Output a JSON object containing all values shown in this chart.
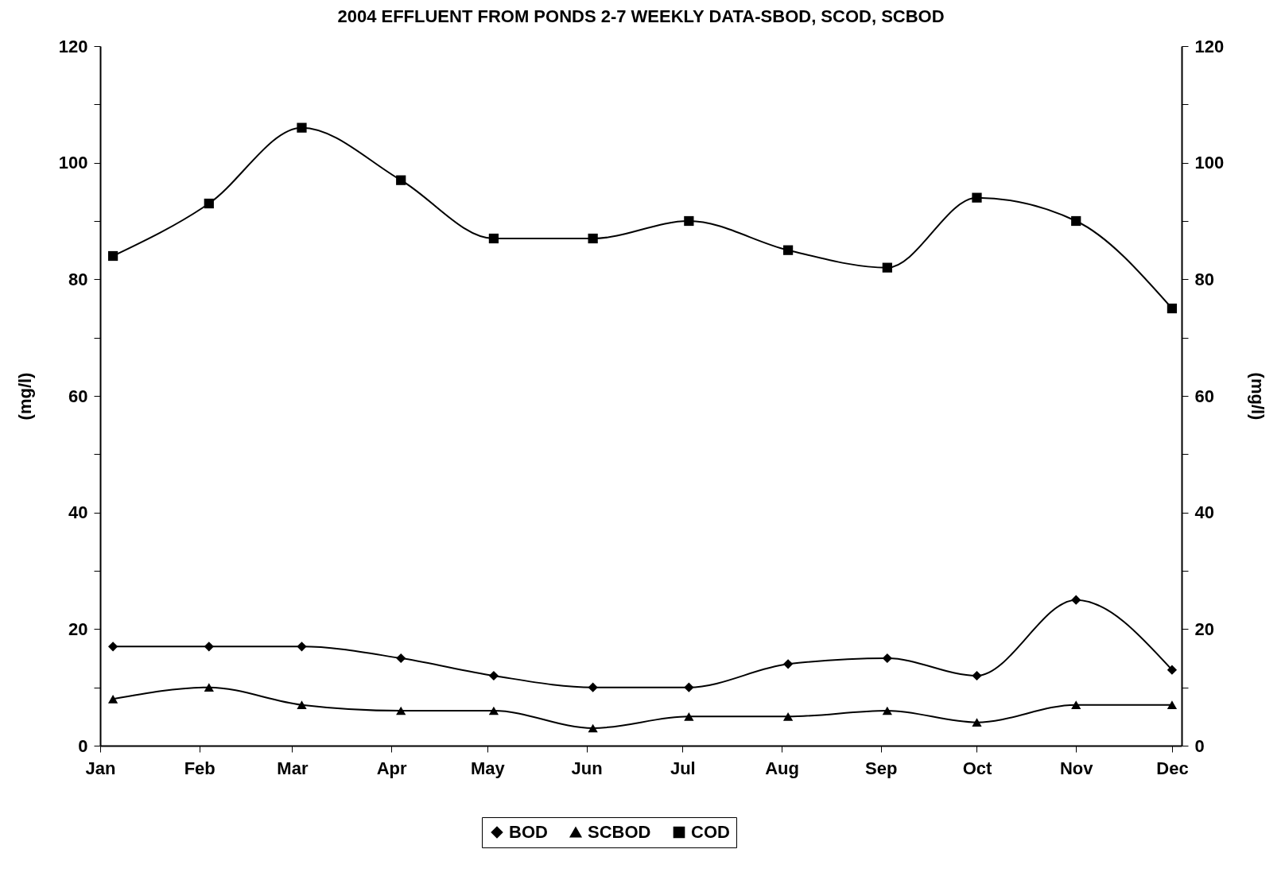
{
  "chart_data": {
    "type": "line",
    "title": "2004 EFFLUENT FROM PONDS 2-7 WEEKLY DATA-SBOD, SCOD, SCBOD",
    "ylabel": "(mg/l)",
    "y2label": "(mg/l)",
    "x": [
      "2004-01-05",
      "2004-02-04",
      "2004-03-04",
      "2004-04-04",
      "2004-05-03",
      "2004-06-03",
      "2004-07-03",
      "2004-08-03",
      "2004-09-03",
      "2004-10-01",
      "2004-11-01",
      "2004-12-01"
    ],
    "series": [
      {
        "name": "BOD",
        "color": "#000000",
        "marker": "diamond",
        "values": [
          17,
          17,
          17,
          15,
          12,
          10,
          10,
          14,
          15,
          12,
          25,
          13
        ]
      },
      {
        "name": "SCBOD",
        "color": "#000000",
        "marker": "triangle",
        "values": [
          8,
          10,
          7,
          6,
          6,
          3,
          5,
          5,
          6,
          4,
          7,
          7
        ]
      },
      {
        "name": "COD",
        "color": "#000000",
        "marker": "square",
        "values": [
          84,
          93,
          106,
          97,
          87,
          87,
          90,
          85,
          82,
          94,
          90,
          75
        ]
      }
    ],
    "xlim": [
      "2004-01-01",
      "2004-12-04"
    ],
    "xticks": [
      {
        "value": "2004-01-01",
        "label": "Jan"
      },
      {
        "value": "2004-02-01",
        "label": "Feb"
      },
      {
        "value": "2004-03-01",
        "label": "Mar"
      },
      {
        "value": "2004-04-01",
        "label": "Apr"
      },
      {
        "value": "2004-05-01",
        "label": "May"
      },
      {
        "value": "2004-06-01",
        "label": "Jun"
      },
      {
        "value": "2004-07-01",
        "label": "Jul"
      },
      {
        "value": "2004-08-01",
        "label": "Aug"
      },
      {
        "value": "2004-09-01",
        "label": "Sep"
      },
      {
        "value": "2004-10-01",
        "label": "Oct"
      },
      {
        "value": "2004-11-01",
        "label": "Nov"
      },
      {
        "value": "2004-12-01",
        "label": "Dec"
      }
    ],
    "ylim": [
      0,
      120
    ],
    "yticks": [
      0,
      {
        "value": 10,
        "label": null
      },
      20,
      {
        "value": 30,
        "label": null
      },
      40,
      {
        "value": 50,
        "label": null
      },
      60,
      {
        "value": 70,
        "label": null
      },
      80,
      {
        "value": 90,
        "label": null
      },
      100,
      {
        "value": 110,
        "label": null
      },
      120
    ],
    "y2lim": [
      0,
      120
    ],
    "y2ticks": [
      0,
      {
        "value": 10,
        "label": null
      },
      20,
      {
        "value": 30,
        "label": null
      },
      40,
      {
        "value": 50,
        "label": null
      },
      60,
      {
        "value": 70,
        "label": null
      },
      80,
      {
        "value": 90,
        "label": null
      },
      100,
      {
        "value": 110,
        "label": null
      },
      120
    ],
    "line_style": "solid",
    "grid": false,
    "legend": "bottom"
  }
}
